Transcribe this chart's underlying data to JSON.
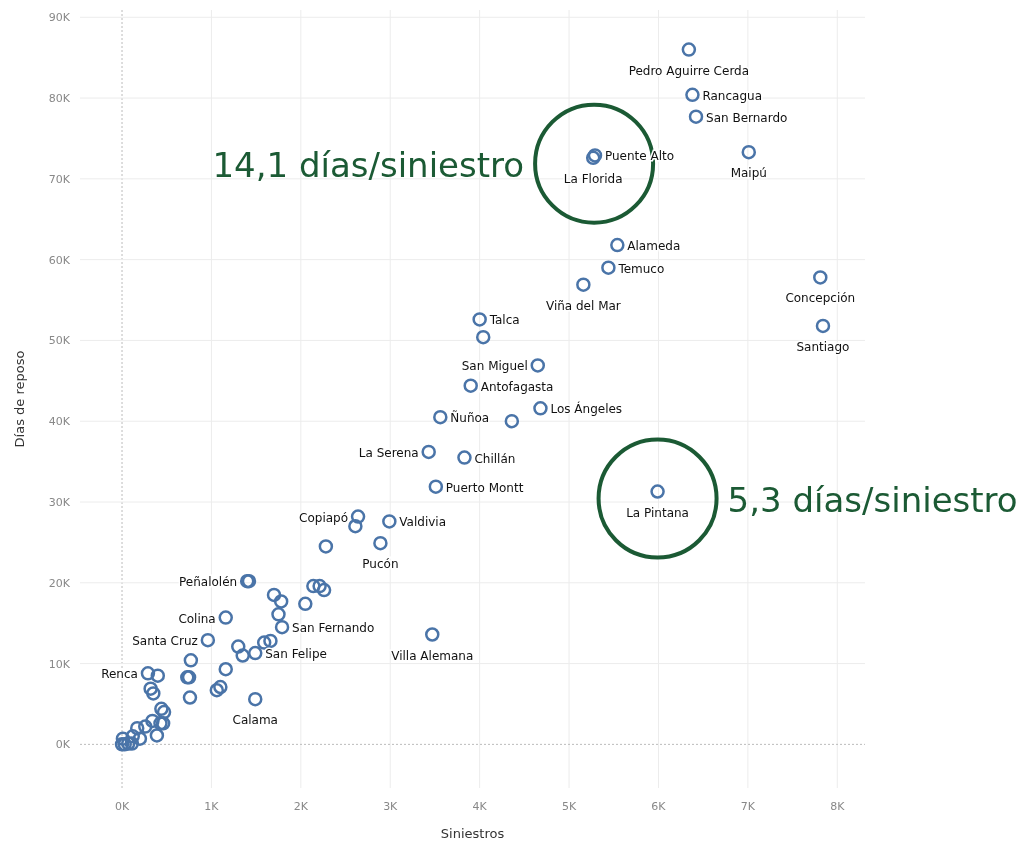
{
  "chart_data": {
    "type": "scatter",
    "xlabel": "Siniestros",
    "ylabel": "Días de reposo",
    "xlim": [
      -470,
      8310
    ],
    "ylim": [
      -5400,
      90900
    ],
    "xticks": [
      {
        "value": 0,
        "label": "0K"
      },
      {
        "value": 1000,
        "label": "1K"
      },
      {
        "value": 2000,
        "label": "2K"
      },
      {
        "value": 3000,
        "label": "3K"
      },
      {
        "value": 4000,
        "label": "4K"
      },
      {
        "value": 5000,
        "label": "5K"
      },
      {
        "value": 6000,
        "label": "6K"
      },
      {
        "value": 7000,
        "label": "7K"
      },
      {
        "value": 8000,
        "label": "8K"
      }
    ],
    "yticks": [
      {
        "value": 0,
        "label": "0K"
      },
      {
        "value": 10000,
        "label": "10K"
      },
      {
        "value": 20000,
        "label": "20K"
      },
      {
        "value": 30000,
        "label": "30K"
      },
      {
        "value": 40000,
        "label": "40K"
      },
      {
        "value": 50000,
        "label": "50K"
      },
      {
        "value": 60000,
        "label": "60K"
      },
      {
        "value": 70000,
        "label": "70K"
      },
      {
        "value": 80000,
        "label": "80K"
      },
      {
        "value": 90000,
        "label": "90K"
      }
    ],
    "grid": true,
    "marker": "circle",
    "series": [
      {
        "color": "#4a74a8",
        "x": [
          6340,
          6380,
          6420,
          5290,
          5270,
          7010,
          5540,
          5440,
          5160,
          4000,
          4040,
          4650,
          3900,
          4680,
          3560,
          4360,
          3430,
          3830,
          3510,
          5990,
          2640,
          2990,
          2610,
          2890,
          2280,
          7810,
          7840,
          1400,
          1420,
          1700,
          1780,
          1750,
          1790,
          2050,
          2140,
          2210,
          2260,
          1160,
          960,
          1300,
          1350,
          1490,
          1590,
          1660,
          770,
          1160,
          730,
          750,
          1060,
          1100,
          760,
          1490,
          290,
          400,
          320,
          350,
          440,
          470,
          3470,
          340,
          430,
          460,
          170,
          260,
          390,
          120,
          200,
          10,
          70,
          0,
          30,
          110
        ],
        "values": [
          86000,
          80400,
          77700,
          72900,
          72600,
          73300,
          61800,
          59000,
          56900,
          52600,
          50400,
          46900,
          44400,
          41600,
          40500,
          40000,
          36200,
          35500,
          31900,
          31300,
          28200,
          27600,
          27000,
          24900,
          24500,
          57800,
          51800,
          20200,
          20200,
          18500,
          17700,
          16100,
          14500,
          17400,
          19600,
          19600,
          19100,
          15700,
          12900,
          12100,
          11000,
          11300,
          12600,
          12800,
          10400,
          9300,
          8300,
          8300,
          6700,
          7100,
          5800,
          5600,
          8800,
          8500,
          6900,
          6300,
          4400,
          4000,
          13600,
          2900,
          2600,
          2600,
          2000,
          2200,
          1100,
          1000,
          700,
          700,
          100,
          0,
          0,
          100
        ]
      }
    ],
    "annotations": [
      {
        "text": "14,1 días/siniestro",
        "x": 5280,
        "y": 72750
      },
      {
        "text": "5,3 días/siniestro",
        "x": 5990,
        "y": 31300
      },
      {
        "text": "Pedro Aguirre Cerda",
        "x": 6340,
        "y": 86000
      },
      {
        "text": "Rancagua",
        "x": 6380,
        "y": 80400
      },
      {
        "text": "San Bernardo",
        "x": 6420,
        "y": 77700
      },
      {
        "text": "Puente Alto",
        "x": 5290,
        "y": 72900
      },
      {
        "text": "La Florida",
        "x": 5270,
        "y": 72600
      },
      {
        "text": "Maipú",
        "x": 7010,
        "y": 73300
      },
      {
        "text": "Alameda",
        "x": 5540,
        "y": 61800
      },
      {
        "text": "Temuco",
        "x": 5440,
        "y": 59000
      },
      {
        "text": "Viña del Mar",
        "x": 5160,
        "y": 56900
      },
      {
        "text": "Talca",
        "x": 4000,
        "y": 52600
      },
      {
        "text": "San Miguel",
        "x": 4650,
        "y": 46900
      },
      {
        "text": "Antofagasta",
        "x": 3900,
        "y": 44400
      },
      {
        "text": "Los Ángeles",
        "x": 4680,
        "y": 41600
      },
      {
        "text": "Ñuñoa",
        "x": 3560,
        "y": 40500
      },
      {
        "text": "La Serena",
        "x": 3430,
        "y": 36200
      },
      {
        "text": "Chillán",
        "x": 3830,
        "y": 35500
      },
      {
        "text": "Puerto Montt",
        "x": 3510,
        "y": 31900
      },
      {
        "text": "La Pintana",
        "x": 5990,
        "y": 31300
      },
      {
        "text": "Copiapó",
        "x": 2640,
        "y": 28200
      },
      {
        "text": "Valdivia",
        "x": 2990,
        "y": 27600
      },
      {
        "text": "Pucón",
        "x": 2890,
        "y": 24900
      },
      {
        "text": "Concepción",
        "x": 7810,
        "y": 57800
      },
      {
        "text": "Santiago",
        "x": 7840,
        "y": 51800
      },
      {
        "text": "Peñalolén",
        "x": 1400,
        "y": 20200
      },
      {
        "text": "Colina",
        "x": 1160,
        "y": 15700
      },
      {
        "text": "Santa Cruz",
        "x": 960,
        "y": 12900
      },
      {
        "text": "San Fernando",
        "x": 1790,
        "y": 14500
      },
      {
        "text": "Villa Alemana",
        "x": 3470,
        "y": 13600
      },
      {
        "text": "San Felipe",
        "x": 1490,
        "y": 11300
      },
      {
        "text": "Renca",
        "x": 290,
        "y": 8800
      },
      {
        "text": "Calama",
        "x": 1490,
        "y": 5600
      }
    ]
  }
}
